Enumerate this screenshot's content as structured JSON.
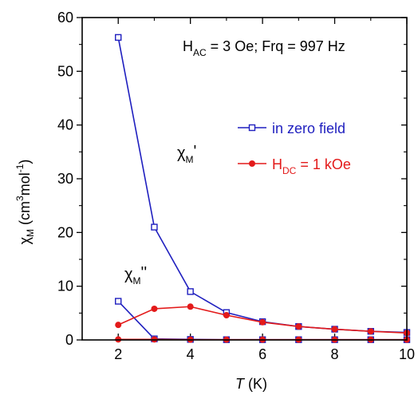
{
  "chart_data": {
    "type": "line",
    "xlabel": {
      "italic": "T",
      "rest": " (K)"
    },
    "ylabel": {
      "chi": "χ",
      "sub": "M",
      "open": " (cm",
      "sup3": "3",
      "mol": "mol",
      "supm1": "-1",
      "close": ")"
    },
    "xlim": [
      1,
      10
    ],
    "ylim": [
      0,
      60
    ],
    "x_ticks": [
      2,
      4,
      6,
      8,
      10
    ],
    "x_minor_ticks": [
      1,
      3,
      5,
      7,
      9
    ],
    "y_ticks": [
      0,
      10,
      20,
      30,
      40,
      50,
      60
    ],
    "y_minor_ticks": [
      5,
      15,
      25,
      35,
      45,
      55
    ],
    "grid": false,
    "legend_position": "top-right",
    "annotations": {
      "conditions": {
        "h": "H",
        "hsub": "AC",
        "rest": " = 3 Oe; Frq = 997 Hz"
      },
      "chi_real": {
        "chi": "χ",
        "sub": "M",
        "mark": "'"
      },
      "chi_imag": {
        "chi": "χ",
        "sub": "M",
        "mark": "''"
      }
    },
    "series": [
      {
        "name": "in zero field",
        "color": "#1f1fbf",
        "marker": "open-square",
        "x": [
          2,
          3,
          4,
          5,
          6,
          7,
          8,
          9,
          10
        ],
        "chi_real": [
          56.3,
          21.0,
          9.0,
          5.1,
          3.4,
          2.5,
          2.0,
          1.6,
          1.4
        ],
        "chi_imag": [
          7.2,
          0.2,
          0.1,
          0.05,
          0.05,
          0.05,
          0.05,
          0.05,
          0.05
        ]
      },
      {
        "name": "H_DC = 1 kOe",
        "label": {
          "h": "H",
          "hsub": "DC",
          "rest": " = 1 kOe"
        },
        "color": "#e31a1a",
        "marker": "filled-circle",
        "x": [
          2,
          3,
          4,
          5,
          6,
          7,
          8,
          9,
          10
        ],
        "chi_real": [
          2.8,
          5.8,
          6.2,
          4.6,
          3.3,
          2.5,
          2.0,
          1.6,
          1.3
        ],
        "chi_imag": [
          0.1,
          0.1,
          0.05,
          0.05,
          0.05,
          0.05,
          0.05,
          0.05,
          0.05
        ]
      }
    ]
  }
}
